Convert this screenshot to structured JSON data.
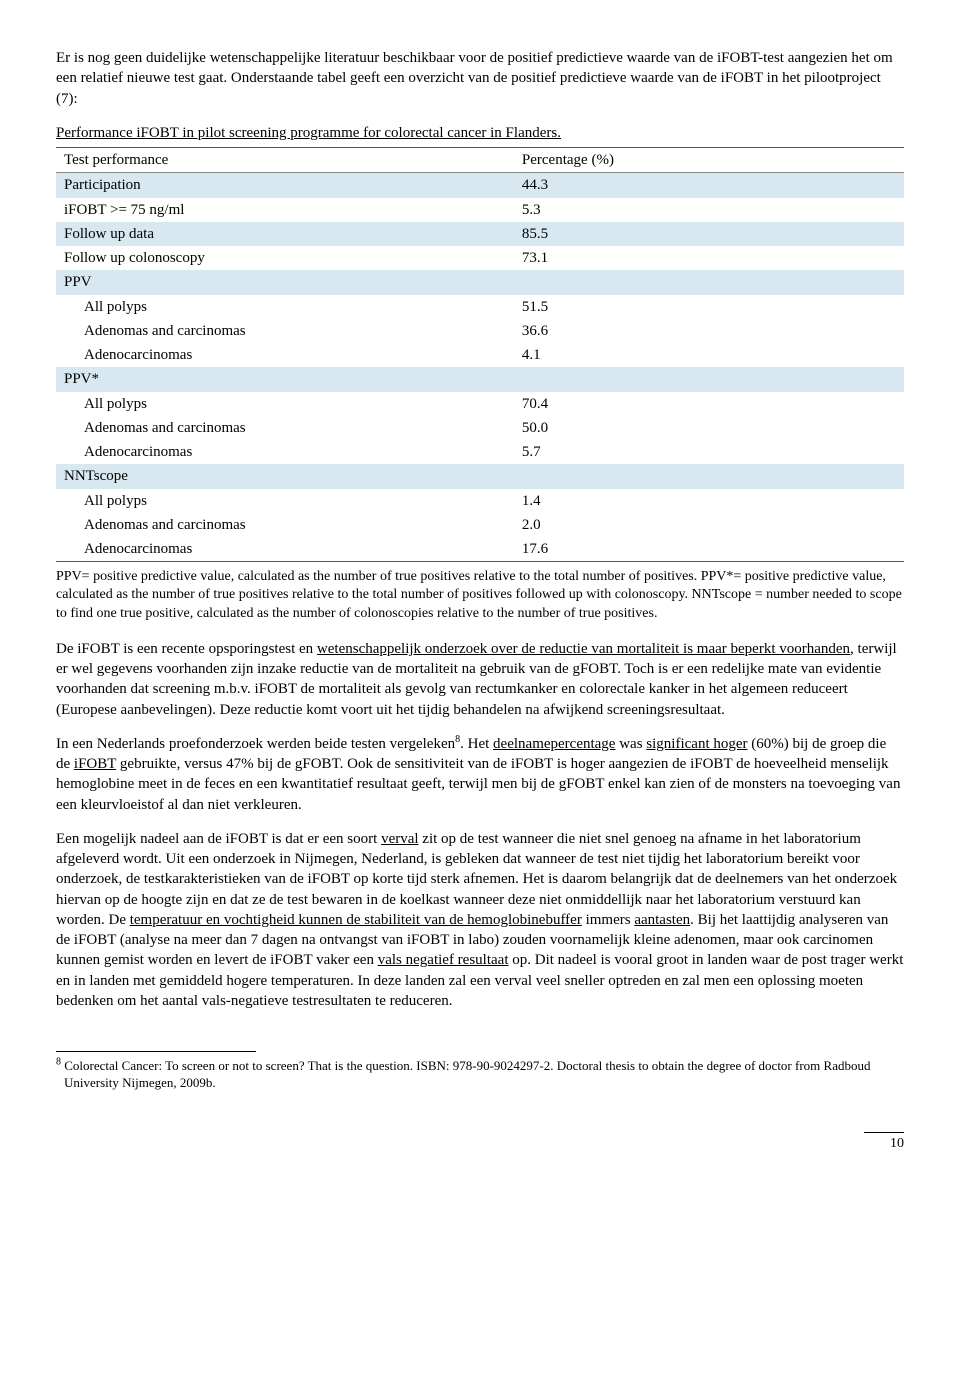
{
  "intro": {
    "p1": "Er is nog geen duidelijke wetenschappelijke  literatuur beschikbaar voor de positief predictieve waarde van de iFOBT-test aangezien het om een relatief nieuwe test gaat. Onderstaande tabel geeft een overzicht van de positief predictieve waarde van de iFOBT in het pilootproject (7):"
  },
  "table": {
    "caption": "Performance iFOBT in pilot screening programme for colorectal cancer in Flanders.",
    "header": [
      "Test performance",
      "Percentage (%)"
    ],
    "rows": [
      {
        "cells": [
          "Participation",
          "44.3"
        ],
        "shade": true,
        "indent": false
      },
      {
        "cells": [
          "iFOBT >= 75 ng/ml",
          "5.3"
        ],
        "shade": false,
        "indent": false
      },
      {
        "cells": [
          "Follow up data",
          "85.5"
        ],
        "shade": true,
        "indent": false
      },
      {
        "cells": [
          "Follow up colonoscopy",
          "73.1"
        ],
        "shade": false,
        "indent": false
      },
      {
        "cells": [
          "PPV",
          ""
        ],
        "shade": true,
        "indent": false
      },
      {
        "cells": [
          "All polyps",
          "51.5"
        ],
        "shade": false,
        "indent": true
      },
      {
        "cells": [
          "Adenomas and carcinomas",
          "36.6"
        ],
        "shade": false,
        "indent": true
      },
      {
        "cells": [
          "Adenocarcinomas",
          "4.1"
        ],
        "shade": false,
        "indent": true
      },
      {
        "cells": [
          "PPV*",
          ""
        ],
        "shade": true,
        "indent": false
      },
      {
        "cells": [
          "All polyps",
          "70.4"
        ],
        "shade": false,
        "indent": true
      },
      {
        "cells": [
          "Adenomas and carcinomas",
          "50.0"
        ],
        "shade": false,
        "indent": true
      },
      {
        "cells": [
          "Adenocarcinomas",
          "5.7"
        ],
        "shade": false,
        "indent": true
      },
      {
        "cells": [
          "NNTscope",
          ""
        ],
        "shade": true,
        "indent": false
      },
      {
        "cells": [
          "All polyps",
          "1.4"
        ],
        "shade": false,
        "indent": true
      },
      {
        "cells": [
          "Adenomas and carcinomas",
          "2.0"
        ],
        "shade": false,
        "indent": true
      },
      {
        "cells": [
          "Adenocarcinomas",
          "17.6"
        ],
        "shade": false,
        "indent": true
      }
    ],
    "note": "PPV= positive predictive value, calculated as the number of true positives relative to the total number of positives. PPV*= positive predictive value, calculated as the number of true positives relative to the total number of positives followed up with colonoscopy. NNTscope = number needed to scope to find one true positive, calculated as the number of colonoscopies relative to the number of true positives.",
    "colors": {
      "shade": "#d7e8f0",
      "border": "#555555"
    }
  },
  "body": {
    "p2_parts": [
      "De iFOBT is een recente opsporingstest en ",
      "wetenschappelijk onderzoek over de reductie van mortaliteit is maar beperkt voorhanden",
      ", terwijl er wel gegevens voorhanden zijn inzake reductie van de mortaliteit na gebruik van de gFOBT. Toch is er een redelijke mate van evidentie voorhanden dat screening m.b.v. iFOBT de mortaliteit als gevolg van rectumkanker en colorectale kanker in het algemeen reduceert (Europese aanbevelingen). Deze reductie komt voort uit het tijdig behandelen na afwijkend screeningsresultaat."
    ],
    "p3_parts": [
      "In een Nederlands proefonderzoek werden beide testen vergeleken",
      "8",
      ". Het ",
      "deelnamepercentage",
      " was ",
      "significant hoger",
      " (60%) bij de groep die de ",
      "iFOBT",
      " gebruikte, versus 47% bij de gFOBT. Ook de sensitiviteit van de iFOBT is hoger aangezien de iFOBT de hoeveelheid menselijk hemoglobine meet in de feces en een kwantitatief resultaat geeft, terwijl men bij de gFOBT enkel kan zien of de monsters na toevoeging van een kleurvloeistof al dan niet verkleuren."
    ],
    "p4_parts": [
      "Een mogelijk nadeel aan de iFOBT is dat er een soort ",
      "verval",
      " zit op de test wanneer die niet snel genoeg na afname in het laboratorium afgeleverd wordt. Uit een onderzoek in Nijmegen, Nederland, is gebleken dat wanneer de test niet tijdig het laboratorium bereikt voor onderzoek, de testkarakteristieken van de iFOBT op korte tijd sterk afnemen. Het is daarom belangrijk dat de deelnemers van het onderzoek hiervan op de hoogte zijn en dat ze de test bewaren in de koelkast wanneer deze niet onmiddellijk naar het laboratorium verstuurd kan worden. De ",
      "temperatuur en vochtigheid kunnen de stabiliteit van de hemoglobinebuffer",
      " immers ",
      "aantasten",
      ". Bij het laattijdig analyseren van de iFOBT (analyse na meer dan 7 dagen na ontvangst van iFOBT in labo) zouden voornamelijk kleine adenomen, maar ook carcinomen kunnen gemist worden en levert de iFOBT vaker een ",
      "vals negatief resultaat",
      " op. Dit nadeel is vooral groot in landen waar de post trager werkt en in landen met gemiddeld hogere temperaturen. In deze landen zal een verval veel sneller optreden en zal men een oplossing moeten bedenken om het aantal vals-negatieve testresultaten te reduceren."
    ]
  },
  "footnote": {
    "marker": "8",
    "text": " Colorectal Cancer: To screen or not to screen? That is the question. ISBN: 978-90-9024297-2. Doctoral thesis to obtain the degree of doctor from Radboud University Nijmegen, 2009b."
  },
  "page": "10"
}
